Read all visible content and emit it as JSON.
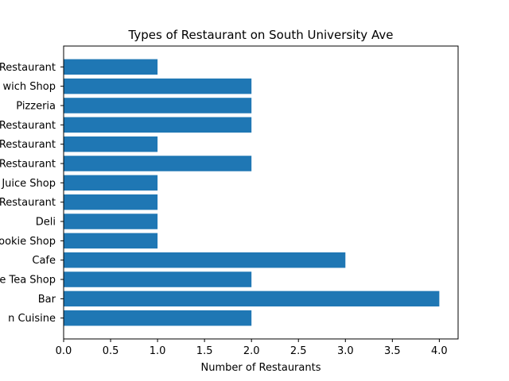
{
  "chart_data": {
    "type": "bar",
    "orientation": "horizontal",
    "title": "Types of Restaurant on South University Ave",
    "xlabel": "Number of Restaurants",
    "ylabel": "",
    "categories": [
      "Restaurant",
      "wich Shop",
      "Pizzeria",
      "Restaurant",
      "Restaurant",
      "Restaurant",
      "Juice Shop",
      "Restaurant",
      "Deli",
      "ookie Shop",
      "Cafe",
      "e Tea Shop",
      "Bar",
      "n Cuisine"
    ],
    "values": [
      1,
      2,
      2,
      2,
      1,
      2,
      1,
      1,
      1,
      1,
      3,
      2,
      4,
      2
    ],
    "xlim": [
      0,
      4.2
    ],
    "xticks": [
      "0.0",
      "0.5",
      "1.0",
      "1.5",
      "2.0",
      "2.5",
      "3.0",
      "3.5",
      "4.0"
    ],
    "grid": false,
    "bar_color": "#1f77b4"
  }
}
